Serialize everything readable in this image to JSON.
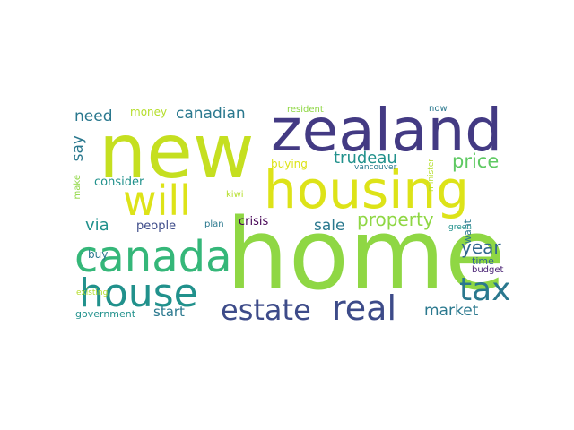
{
  "words": {
    "home": "home",
    "new": "new",
    "zealand": "zealand",
    "housing": "housing",
    "canada": "canada",
    "will": "will",
    "house": "house",
    "real": "real",
    "estate": "estate",
    "tax": "tax",
    "property": "property",
    "price": "price",
    "year": "year",
    "market": "market",
    "canadian": "canadian",
    "trudeau": "trudeau",
    "say": "say",
    "need": "need",
    "sale": "sale",
    "via": "via",
    "money": "money",
    "consider": "consider",
    "buying": "buying",
    "crisis": "crisis",
    "people": "people",
    "buy": "buy",
    "start": "start",
    "government": "government",
    "make": "make",
    "want": "want",
    "kiwi": "kiwi",
    "plan": "plan",
    "resident": "resident",
    "now": "now",
    "vancouver": "vancouver",
    "minister": "minister",
    "green": "green",
    "time": "time",
    "budget": "budget",
    "existing": "existing"
  },
  "colors": {
    "yellow_green": "#b5de2b",
    "lime": "#8fd744",
    "green": "#5ec962",
    "teal_green": "#35b779",
    "teal": "#21918c",
    "blue": "#31688e",
    "indigo": "#443983",
    "purple": "#440154",
    "yellow": "#dde318"
  }
}
